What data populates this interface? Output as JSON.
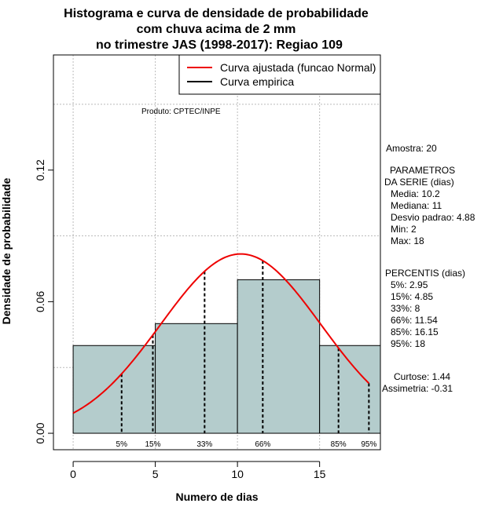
{
  "chart_data": {
    "type": "bar",
    "title_lines": [
      "Histograma e curva de densidade de probabilidade",
      "com chuva acima de 2 mm",
      "no trimestre JAS (1998-2017): Regiao 109"
    ],
    "xlabel": "Numero de dias",
    "ylabel": "Densidade de probabilidade",
    "xlim": [
      -1.2,
      18.7
    ],
    "ylim": [
      -0.0075,
      0.1725
    ],
    "x_ticks": [
      0,
      5,
      10,
      15
    ],
    "y_ticks": [
      0.0,
      0.06,
      0.12
    ],
    "y_tick_labels": [
      "0.00",
      "0.06",
      "0.12"
    ],
    "grid": true,
    "bins": [
      {
        "from": 0,
        "to": 5,
        "density": 0.04
      },
      {
        "from": 5,
        "to": 10,
        "density": 0.05
      },
      {
        "from": 10,
        "to": 15,
        "density": 0.07
      },
      {
        "from": 15,
        "to": 18.7,
        "density": 0.04
      }
    ],
    "normal_curve": {
      "mean": 10.2,
      "sd": 4.88,
      "x_from": 0,
      "x_to": 18,
      "color": "#ee0000"
    },
    "percentile_lines": [
      {
        "label": "5%",
        "x": 2.95
      },
      {
        "label": "15%",
        "x": 4.85
      },
      {
        "label": "33%",
        "x": 8
      },
      {
        "label": "66%",
        "x": 11.54
      },
      {
        "label": "85%",
        "x": 16.15
      },
      {
        "label": "95%",
        "x": 18
      }
    ],
    "legend": {
      "placement": "top-right",
      "entries": [
        {
          "label": "Curva ajustada (funcao Normal)",
          "color": "#ee0000"
        },
        {
          "label": "Curva empirica",
          "color": "#000000"
        }
      ]
    },
    "annotation": "Produto: CPTEC/INPE",
    "colors": {
      "bar_fill": "#b4cccc",
      "grid": "#bbbbbb"
    }
  },
  "stats_panel": {
    "sample": "Amostra: 20",
    "params_title_1": "PARAMETROS",
    "params_title_2": "DA SERIE (dias)",
    "params": [
      "Media: 10.2",
      "Mediana: 11",
      "Desvio padrao: 4.88",
      "Min: 2",
      "Max: 18"
    ],
    "percentis_title": "PERCENTIS (dias)",
    "percentis": [
      "5%: 2.95",
      "15%: 4.85",
      "33%: 8",
      "66%: 11.54",
      "85%: 16.15",
      "95%: 18"
    ],
    "kurtosis": "Curtose: 1.44",
    "skewness": "Assimetria: -0.31"
  }
}
